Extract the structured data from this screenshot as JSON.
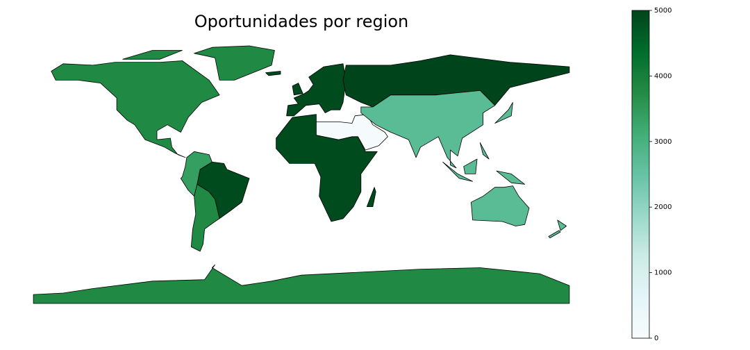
{
  "chart_data": {
    "type": "choropleth",
    "title": "Oportunidades por region",
    "values": [
      3800,
      3400,
      4900,
      3800,
      4900,
      5000,
      4900,
      80,
      2700,
      2700,
      3800
    ],
    "colormap": "BuGn",
    "clim": [
      0,
      5000
    ],
    "cticks": [
      0,
      1000,
      2000,
      3000,
      4000,
      5000
    ]
  }
}
